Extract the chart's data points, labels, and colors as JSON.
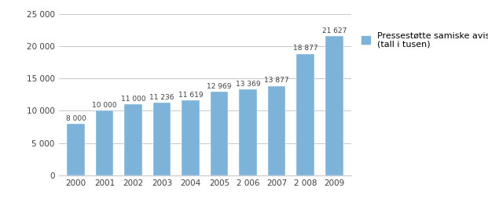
{
  "categories": [
    "2000",
    "2001",
    "2002",
    "2003",
    "2004",
    "2005",
    "2 006",
    "2007",
    "2 008",
    "2009"
  ],
  "values": [
    8000,
    10000,
    11000,
    11236,
    11619,
    12969,
    13369,
    13877,
    18877,
    21627
  ],
  "bar_color": "#7db3d8",
  "value_labels": [
    "8 000",
    "10 000",
    "11 000",
    "11 236",
    "11 619",
    "12 969",
    "13 369",
    "13 877",
    "18 877",
    "21 627"
  ],
  "x_labels": [
    "2000",
    "2001",
    "2002",
    "2003",
    "2004",
    "2005",
    "2 006",
    "2007",
    "2 008",
    "2009"
  ],
  "ylim": [
    0,
    25000
  ],
  "yticks": [
    0,
    5000,
    10000,
    15000,
    20000,
    25000
  ],
  "ytick_labels": [
    "0",
    "5 000",
    "10 000",
    "15 000",
    "20 000",
    "25 000"
  ],
  "legend_label": "Pressestøtte samiske aviser\n(tall i tusen)",
  "background_color": "#ffffff",
  "grid_color": "#c8c8c8",
  "text_color": "#404040",
  "value_fontsize": 6.5,
  "axis_fontsize": 7.5
}
